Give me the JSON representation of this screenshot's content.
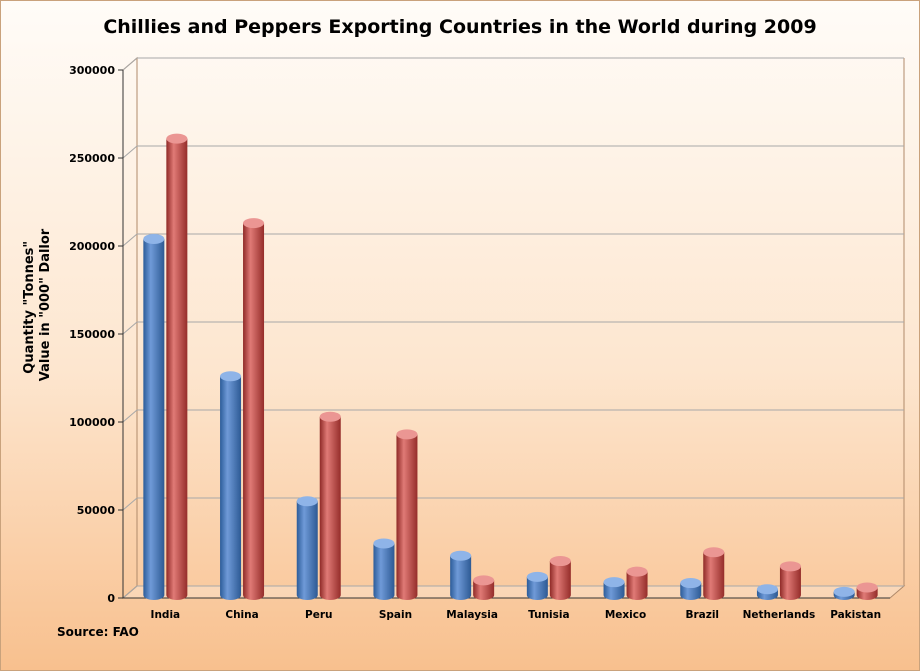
{
  "chart_data": {
    "type": "bar",
    "title": "Chillies and Peppers Exporting Countries in the World during 2009",
    "ylabel_lines": [
      "Quantity \"Tonnes\"",
      "Value in \"000\" Dallor"
    ],
    "source": "Source: FAO",
    "categories": [
      "India",
      "China",
      "Peru",
      "Spain",
      "Malaysia",
      "Tunisia",
      "Mexico",
      "Brazil",
      "Netherlands",
      "Pakistan"
    ],
    "series": [
      {
        "values": [
          204000,
          126000,
          55000,
          31000,
          24000,
          12000,
          9000,
          8500,
          5000,
          3500
        ],
        "color": "#4f81bd"
      },
      {
        "values": [
          261000,
          213000,
          103000,
          93000,
          10000,
          21000,
          15000,
          26000,
          18000,
          6000
        ],
        "color": "#c0504d"
      }
    ],
    "ylim": [
      0,
      300000
    ],
    "yticks": [
      "0",
      "50000",
      "100000",
      "150000",
      "200000",
      "250000",
      "300000"
    ],
    "grid": true,
    "colors": {
      "blue": "#4f81bd",
      "red": "#c0504d"
    }
  }
}
